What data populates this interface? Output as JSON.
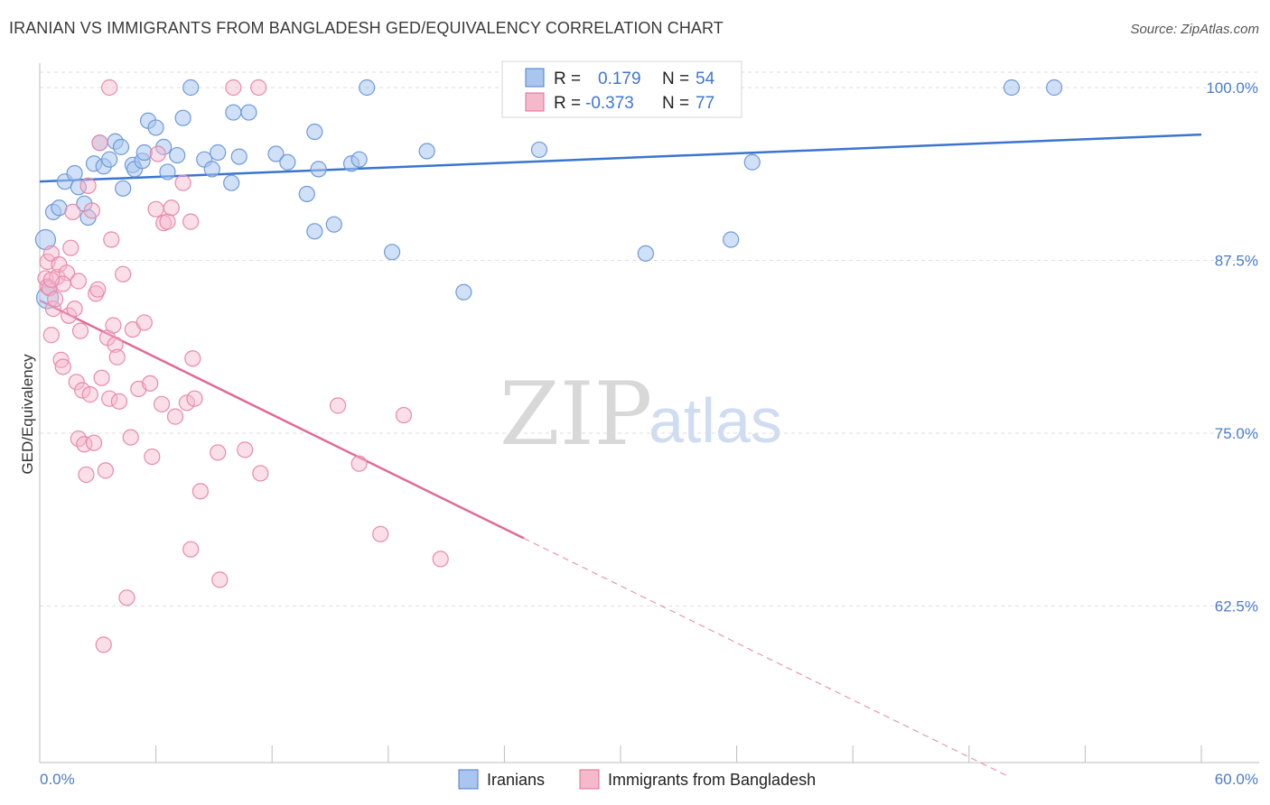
{
  "title": "IRANIAN VS IMMIGRANTS FROM BANGLADESH GED/EQUIVALENCY CORRELATION CHART",
  "source": "Source: ZipAtlas.com",
  "watermark": {
    "part1": "ZIP",
    "part2": "atlas"
  },
  "colors": {
    "blue": "#4a7cc9",
    "blue_fill": "#aac6ee",
    "pink": "#e06b96",
    "pink_fill": "#f5b9cc"
  },
  "legend": {
    "rows": [
      {
        "r_label": "R =",
        "r_value": "0.179",
        "n_label": "N =",
        "n_value": "54"
      },
      {
        "r_label": "R =",
        "r_value": "-0.373",
        "n_label": "N =",
        "n_value": "77"
      }
    ]
  },
  "chart_data": {
    "type": "scatter",
    "title": "IRANIAN VS IMMIGRANTS FROM BANGLADESH GED/EQUIVALENCY CORRELATION CHART",
    "xlabel": "",
    "ylabel": "GED/Equivalency",
    "xlim": [
      0,
      60
    ],
    "ylim": [
      51.5,
      102.5
    ],
    "x_tick_labels": [
      "0.0%",
      "60.0%"
    ],
    "y_tick_labels": [
      "100.0%",
      "87.5%",
      "75.0%",
      "62.5%"
    ],
    "y_ticks": [
      100,
      87.5,
      75,
      62.5
    ],
    "grid": true,
    "legend_position": "top-center",
    "series": [
      {
        "name": "Iranians",
        "color": "#4a7cc9",
        "trend": {
          "x1": 0,
          "y1": 93.2,
          "x2": 60,
          "y2": 96.6
        },
        "points": [
          [
            0.3,
            89.0
          ],
          [
            0.4,
            84.8
          ],
          [
            0.7,
            91.0
          ],
          [
            1.0,
            91.3
          ],
          [
            1.3,
            93.2
          ],
          [
            1.8,
            93.8
          ],
          [
            2.0,
            92.8
          ],
          [
            2.3,
            91.6
          ],
          [
            2.5,
            90.6
          ],
          [
            2.8,
            94.5
          ],
          [
            3.1,
            96.0
          ],
          [
            3.3,
            94.3
          ],
          [
            3.6,
            94.8
          ],
          [
            3.9,
            96.1
          ],
          [
            4.2,
            95.7
          ],
          [
            4.3,
            92.7
          ],
          [
            4.8,
            94.4
          ],
          [
            4.9,
            94.1
          ],
          [
            5.3,
            94.7
          ],
          [
            5.4,
            95.3
          ],
          [
            5.6,
            97.6
          ],
          [
            6.0,
            97.1
          ],
          [
            6.4,
            95.7
          ],
          [
            6.6,
            93.9
          ],
          [
            7.1,
            95.1
          ],
          [
            7.4,
            97.8
          ],
          [
            7.8,
            100.0
          ],
          [
            8.5,
            94.8
          ],
          [
            8.9,
            94.1
          ],
          [
            9.2,
            95.3
          ],
          [
            9.9,
            93.1
          ],
          [
            10.0,
            98.2
          ],
          [
            10.3,
            95.0
          ],
          [
            10.8,
            98.2
          ],
          [
            12.2,
            95.2
          ],
          [
            12.8,
            94.6
          ],
          [
            13.8,
            92.3
          ],
          [
            14.2,
            96.8
          ],
          [
            14.2,
            89.6
          ],
          [
            14.4,
            94.1
          ],
          [
            15.2,
            90.1
          ],
          [
            16.1,
            94.5
          ],
          [
            16.5,
            94.8
          ],
          [
            16.9,
            100.0
          ],
          [
            18.2,
            88.1
          ],
          [
            20.0,
            95.4
          ],
          [
            21.9,
            85.2
          ],
          [
            25.8,
            95.5
          ],
          [
            31.3,
            88.0
          ],
          [
            35.7,
            89.0
          ],
          [
            36.8,
            94.6
          ],
          [
            50.2,
            100.0
          ],
          [
            52.4,
            100.0
          ],
          [
            0.5,
            85.5
          ]
        ]
      },
      {
        "name": "Immigrants from Bangladesh",
        "color": "#e06b96",
        "trend": {
          "x1": 0,
          "y1": 84.6,
          "x2": 25,
          "y2": 67.4,
          "dash_x2": 50,
          "dash_y2": 50.2
        },
        "points": [
          [
            0.3,
            86.2
          ],
          [
            0.4,
            85.6
          ],
          [
            0.4,
            87.4
          ],
          [
            0.5,
            85.5
          ],
          [
            0.6,
            88.0
          ],
          [
            0.6,
            82.1
          ],
          [
            0.7,
            84.0
          ],
          [
            0.8,
            84.7
          ],
          [
            0.9,
            86.3
          ],
          [
            1.0,
            87.2
          ],
          [
            1.1,
            80.3
          ],
          [
            1.2,
            79.8
          ],
          [
            1.4,
            86.6
          ],
          [
            1.5,
            83.5
          ],
          [
            1.6,
            88.4
          ],
          [
            1.7,
            91.0
          ],
          [
            1.8,
            84.0
          ],
          [
            1.9,
            78.7
          ],
          [
            2.0,
            74.6
          ],
          [
            2.0,
            86.0
          ],
          [
            2.1,
            82.4
          ],
          [
            2.2,
            78.1
          ],
          [
            2.3,
            74.2
          ],
          [
            2.4,
            72.0
          ],
          [
            2.5,
            92.9
          ],
          [
            2.6,
            77.8
          ],
          [
            2.7,
            91.1
          ],
          [
            2.8,
            74.3
          ],
          [
            2.9,
            85.1
          ],
          [
            3.0,
            85.4
          ],
          [
            3.1,
            96.0
          ],
          [
            3.2,
            79.0
          ],
          [
            3.3,
            59.7
          ],
          [
            3.4,
            72.3
          ],
          [
            3.5,
            81.9
          ],
          [
            3.6,
            77.5
          ],
          [
            3.7,
            89.0
          ],
          [
            3.8,
            82.8
          ],
          [
            3.9,
            81.4
          ],
          [
            4.0,
            80.5
          ],
          [
            4.1,
            77.3
          ],
          [
            4.3,
            86.5
          ],
          [
            4.5,
            63.1
          ],
          [
            4.7,
            74.7
          ],
          [
            4.8,
            82.5
          ],
          [
            5.1,
            78.2
          ],
          [
            5.4,
            83.0
          ],
          [
            5.7,
            78.6
          ],
          [
            5.8,
            73.3
          ],
          [
            6.0,
            91.2
          ],
          [
            6.1,
            95.2
          ],
          [
            6.3,
            77.1
          ],
          [
            6.4,
            90.2
          ],
          [
            6.6,
            90.3
          ],
          [
            6.8,
            91.3
          ],
          [
            7.0,
            76.2
          ],
          [
            7.4,
            93.1
          ],
          [
            7.6,
            77.2
          ],
          [
            7.8,
            90.3
          ],
          [
            7.8,
            66.6
          ],
          [
            7.9,
            80.4
          ],
          [
            8.0,
            77.5
          ],
          [
            8.3,
            70.8
          ],
          [
            9.2,
            73.6
          ],
          [
            9.3,
            64.4
          ],
          [
            10.0,
            100.0
          ],
          [
            10.6,
            73.8
          ],
          [
            11.4,
            72.1
          ],
          [
            11.3,
            100.0
          ],
          [
            15.4,
            77.0
          ],
          [
            16.5,
            72.8
          ],
          [
            17.6,
            67.7
          ],
          [
            18.8,
            76.3
          ],
          [
            20.7,
            65.9
          ],
          [
            3.6,
            100.0
          ],
          [
            1.2,
            85.8
          ],
          [
            0.6,
            86.1
          ]
        ]
      }
    ]
  }
}
